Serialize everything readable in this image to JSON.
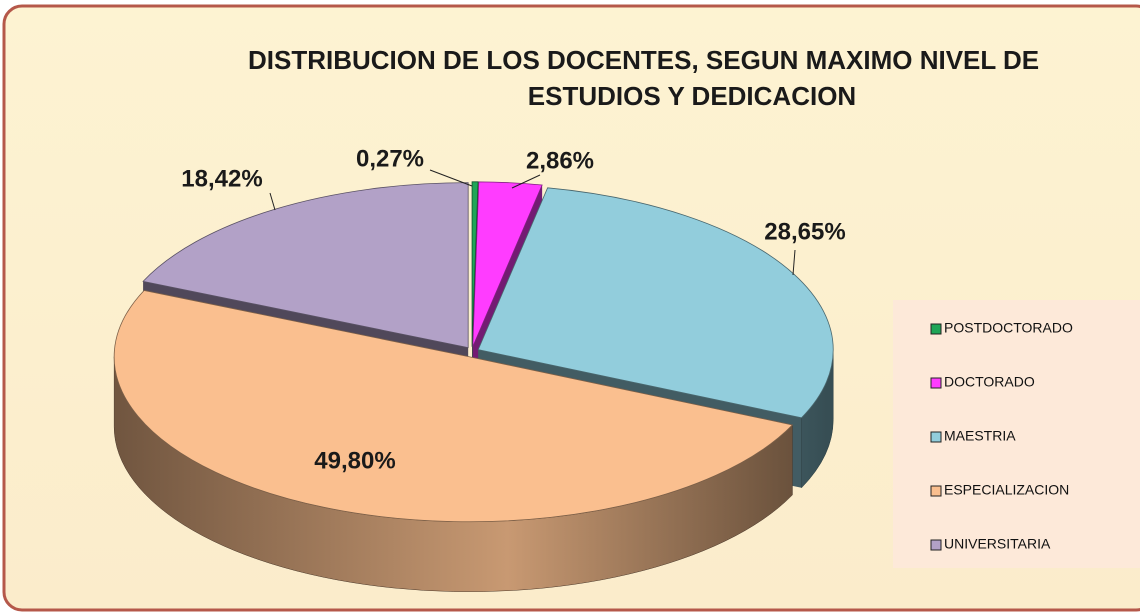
{
  "chart_data": {
    "type": "pie3d",
    "title": [
      "DISTRIBUCION DE LOS DOCENTES, SEGUN  MAXIMO NIVEL DE",
      "ESTUDIOS Y DEDICACION"
    ],
    "categories": [
      "POSTDOCTORADO",
      "DOCTORADO",
      "MAESTRIA",
      "ESPECIALIZACION",
      "UNIVERSITARIA"
    ],
    "values": [
      0.27,
      2.86,
      28.65,
      49.8,
      18.42
    ],
    "value_labels": [
      "0,27%",
      "2,86%",
      "28,65%",
      "49,80%",
      "18,42%"
    ],
    "colors": [
      "#1fa557",
      "#ff3cff",
      "#92cddc",
      "#fabf8f",
      "#b2a1c7"
    ],
    "legend": "right"
  }
}
